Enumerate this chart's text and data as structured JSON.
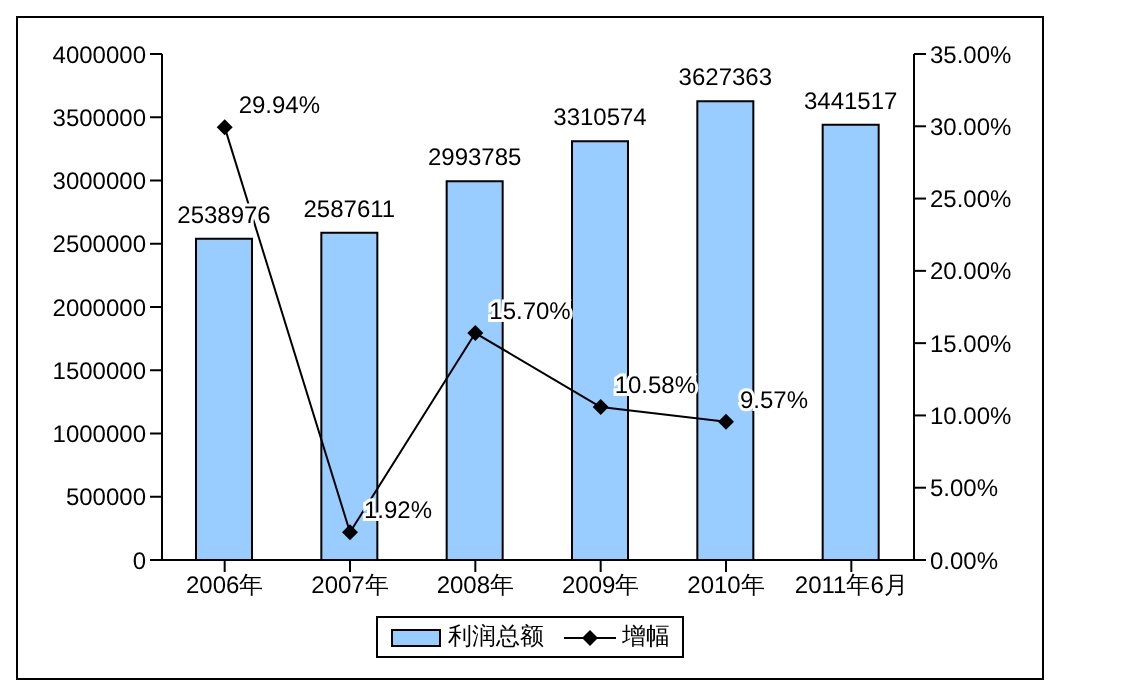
{
  "chart_data": {
    "type": "bar",
    "categories": [
      "2006年",
      "2007年",
      "2008年",
      "2009年",
      "2010年",
      "2011年6月"
    ],
    "series": [
      {
        "name": "利润总额",
        "color": "#99ccff",
        "values": [
          2538976,
          2587611,
          2993785,
          3310574,
          3627363,
          3441517
        ],
        "data_labels": true
      },
      {
        "name": "增幅",
        "type": "line",
        "axis": "y2",
        "color": "#000000",
        "marker": "diamond",
        "values": [
          29.94,
          1.92,
          15.7,
          10.58,
          9.57,
          null
        ],
        "value_labels": [
          "29.94%",
          "1.92%",
          "15.70%",
          "10.58%",
          "9.57%",
          null
        ]
      }
    ],
    "ylim": [
      0,
      4000000
    ],
    "yticks": [
      0,
      500000,
      1000000,
      1500000,
      2000000,
      2500000,
      3000000,
      3500000,
      4000000
    ],
    "y2lim": [
      0,
      35
    ],
    "y2ticks": [
      {
        "value": 0,
        "label": "0.00%"
      },
      {
        "value": 5,
        "label": "5.00%"
      },
      {
        "value": 10,
        "label": "10.00%"
      },
      {
        "value": 15,
        "label": "15.00%"
      },
      {
        "value": 20,
        "label": "20.00%"
      },
      {
        "value": 25,
        "label": "25.00%"
      },
      {
        "value": 30,
        "label": "30.00%"
      },
      {
        "value": 35,
        "label": "35.00%"
      }
    ],
    "grid": false,
    "legend": "bottom"
  }
}
